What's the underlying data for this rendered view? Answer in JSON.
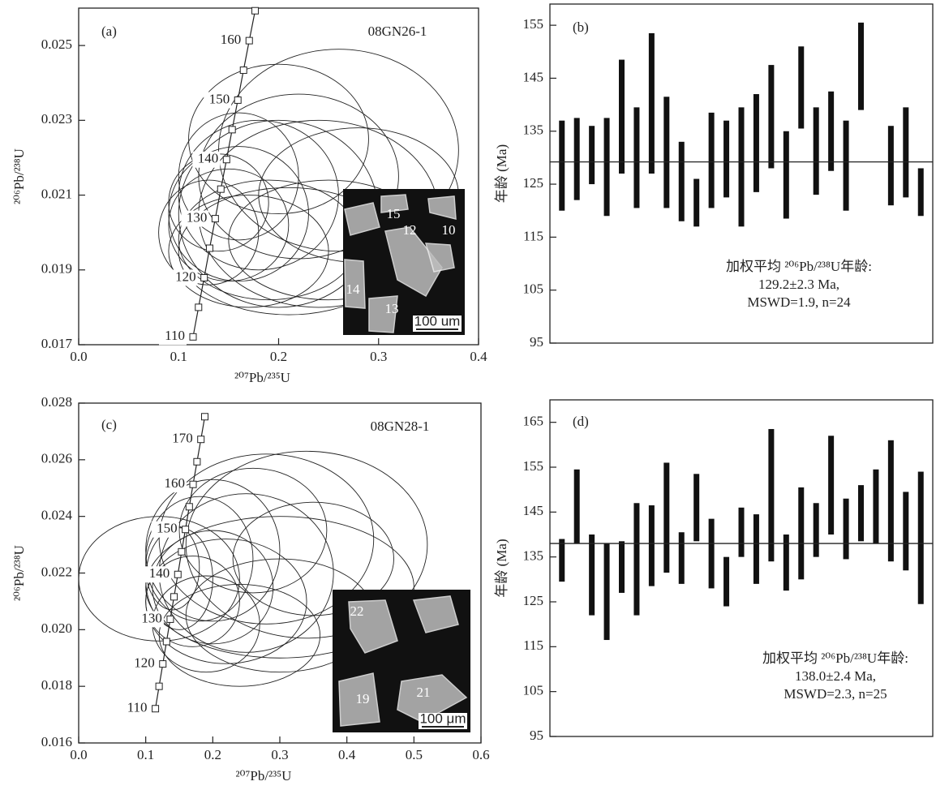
{
  "chart_data": [
    {
      "type": "concordia",
      "panel": "(a)",
      "title": "08GN26-1",
      "xlabel": "²⁰⁷Pb/²³⁵U",
      "ylabel": "²⁰⁶Pb/²³⁸U",
      "xlim": [
        0,
        0.4
      ],
      "ylim": [
        0.017,
        0.026
      ],
      "xticks": [
        {
          "value": 0,
          "label": "0.0"
        },
        0.1,
        0.2,
        0.3,
        0.4
      ],
      "yticks": [
        0.017,
        0.019,
        0.021,
        0.023,
        0.025
      ],
      "concordia": {
        "x": [
          0.1144,
          0.1199,
          0.1255,
          0.131,
          0.1366,
          0.1422,
          0.1479,
          0.1535,
          0.1592,
          0.1649,
          0.1706,
          0.1765
        ],
        "y": [
          0.01721,
          0.018,
          0.01879,
          0.01958,
          0.02037,
          0.02116,
          0.02195,
          0.02275,
          0.02354,
          0.02434,
          0.02513,
          0.02593
        ],
        "labels": [
          "110",
          null,
          "120",
          null,
          "130",
          null,
          "140",
          null,
          "150",
          null,
          "160",
          null
        ]
      },
      "ellipses": {
        "x": [
          0.26,
          0.2,
          0.18,
          0.16,
          0.22,
          0.15,
          0.19,
          0.24,
          0.17,
          0.14,
          0.2,
          0.28,
          0.16,
          0.21,
          0.13,
          0.25
        ],
        "y": [
          0.0222,
          0.0205,
          0.021,
          0.0205,
          0.0215,
          0.0202,
          0.0198,
          0.0205,
          0.0195,
          0.0208,
          0.0225,
          0.021,
          0.0215,
          0.0195,
          0.02,
          0.0198
        ],
        "x_err": [
          0.12,
          0.1,
          0.08,
          0.07,
          0.1,
          0.06,
          0.09,
          0.12,
          0.08,
          0.05,
          0.09,
          0.1,
          0.06,
          0.11,
          0.05,
          0.1
        ],
        "y_err": [
          0.0027,
          0.0025,
          0.002,
          0.0018,
          0.0022,
          0.0015,
          0.0016,
          0.0025,
          0.0015,
          0.0013,
          0.002,
          0.0018,
          0.0017,
          0.0017,
          0.0014,
          0.0016
        ]
      },
      "inset": {
        "labels": [
          "15",
          "12",
          "10",
          "14",
          "13"
        ],
        "scale": "100 um"
      }
    },
    {
      "type": "range",
      "panel": "(b)",
      "ylabel": "年龄 (Ma)",
      "ylim": [
        95,
        159
      ],
      "yticks": [
        95,
        105,
        115,
        125,
        135,
        145,
        155
      ],
      "low": [
        120,
        122,
        125,
        119,
        127,
        120.5,
        127,
        120.5,
        118,
        117,
        120.5,
        122.5,
        117,
        123.5,
        128,
        118.5,
        135.5,
        123,
        127.5,
        120,
        139,
        null,
        121,
        122.5,
        119
      ],
      "high": [
        137,
        137.5,
        136,
        137.5,
        148.5,
        139.5,
        153.5,
        141.5,
        133,
        126,
        138.5,
        137,
        139.5,
        142,
        147.5,
        135,
        151,
        139.5,
        142.5,
        137,
        155.5,
        null,
        136,
        139.5,
        128
      ],
      "mean": 129.2,
      "annotation": [
        "加权平均 ²⁰⁶Pb/²³⁸U年龄:",
        "129.2±2.3 Ma,",
        "MSWD=1.9, n=24"
      ]
    },
    {
      "type": "concordia",
      "panel": "(c)",
      "title": "08GN28-1",
      "xlabel": "²⁰⁷Pb/²³⁵U",
      "ylabel": "²⁰⁶Pb/²³⁸U",
      "xlim": [
        0,
        0.6
      ],
      "ylim": [
        0.016,
        0.028
      ],
      "xticks": [
        {
          "value": 0,
          "label": "0.0"
        },
        0.1,
        0.2,
        0.3,
        0.4,
        0.5,
        0.6
      ],
      "yticks": [
        0.016,
        0.018,
        {
          "value": 0.02,
          "label": "0.020"
        },
        0.022,
        0.024,
        0.026,
        {
          "value": 0.028,
          "label": "0.028"
        }
      ],
      "concordia": {
        "x": [
          0.1144,
          0.1199,
          0.1255,
          0.131,
          0.1366,
          0.1422,
          0.1479,
          0.1535,
          0.1592,
          0.1649,
          0.1706,
          0.1765,
          0.1823,
          0.1881
        ],
        "y": [
          0.01721,
          0.018,
          0.01879,
          0.01958,
          0.02037,
          0.02116,
          0.02195,
          0.02275,
          0.02354,
          0.02434,
          0.02513,
          0.02593,
          0.02672,
          0.02752
        ],
        "labels": [
          "110",
          null,
          "120",
          null,
          "130",
          null,
          "140",
          null,
          "150",
          null,
          "160",
          null,
          "170",
          null
        ]
      },
      "ellipses": {
        "x": [
          0.34,
          0.12,
          0.28,
          0.3,
          0.25,
          0.2,
          0.18,
          0.22,
          0.3,
          0.15,
          0.2,
          0.35,
          0.17,
          0.24,
          0.14,
          0.26,
          0.19
        ],
        "y": [
          0.023,
          0.0218,
          0.0232,
          0.0215,
          0.022,
          0.0215,
          0.0225,
          0.021,
          0.0205,
          0.0218,
          0.0228,
          0.0225,
          0.021,
          0.0198,
          0.0222,
          0.0235,
          0.0202
        ],
        "x_err": [
          0.18,
          0.12,
          0.16,
          0.2,
          0.13,
          0.09,
          0.08,
          0.12,
          0.14,
          0.05,
          0.1,
          0.12,
          0.07,
          0.12,
          0.04,
          0.11,
          0.08
        ],
        "y_err": [
          0.0033,
          0.0022,
          0.003,
          0.0025,
          0.0028,
          0.002,
          0.0022,
          0.0022,
          0.002,
          0.0018,
          0.0025,
          0.002,
          0.0016,
          0.0018,
          0.0015,
          0.0022,
          0.0017
        ]
      },
      "inset": {
        "labels": [
          "22",
          "19",
          "21"
        ],
        "scale": "100 μm"
      }
    },
    {
      "type": "range",
      "panel": "(d)",
      "ylabel": "年龄 (Ma)",
      "ylim": [
        95,
        170
      ],
      "yticks": [
        95,
        105,
        115,
        125,
        135,
        145,
        155,
        165
      ],
      "low": [
        129.5,
        138,
        122,
        116.5,
        127,
        122,
        128.5,
        131.5,
        129,
        138.5,
        128,
        124,
        135,
        129,
        134,
        127.5,
        130,
        135,
        140,
        134.5,
        138.5,
        138,
        134,
        132,
        124.5
      ],
      "high": [
        139,
        154.5,
        140,
        138,
        138.5,
        147,
        146.5,
        156,
        140.5,
        153.5,
        143.5,
        135,
        146,
        144.5,
        163.5,
        140,
        150.5,
        147,
        162,
        148,
        151,
        154.5,
        161,
        149.5,
        154
      ],
      "mean": 138.0,
      "annotation": [
        "加权平均 ²⁰⁶Pb/²³⁸U年龄:",
        "138.0±2.4 Ma,",
        "MSWD=2.3, n=25"
      ]
    }
  ]
}
